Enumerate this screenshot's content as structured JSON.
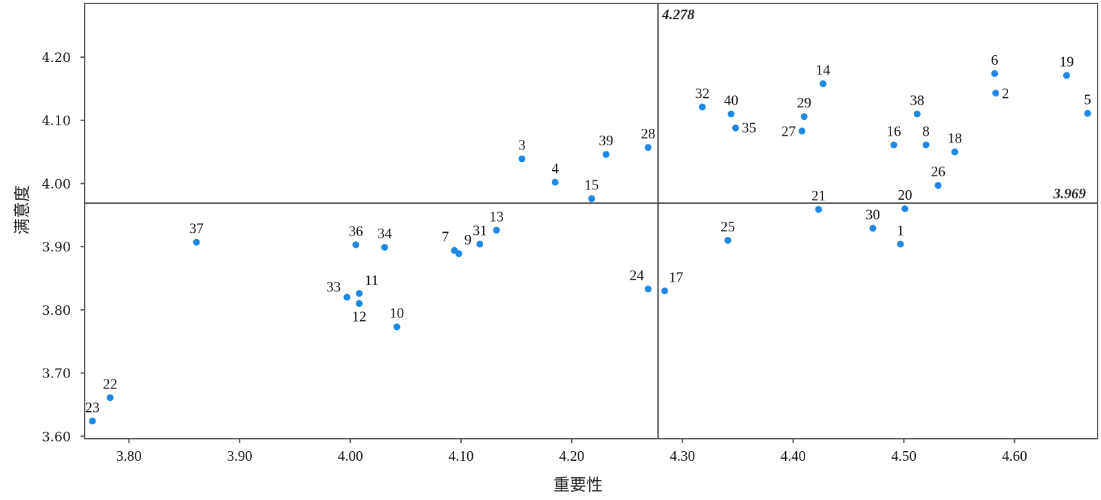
{
  "chart_data": {
    "type": "scatter",
    "title": "",
    "xlabel": "重要性",
    "ylabel": "满意度",
    "xlim": [
      3.76,
      4.675
    ],
    "ylim": [
      3.596,
      4.285
    ],
    "xticks": [
      "3.80",
      "3.90",
      "4.00",
      "4.10",
      "4.20",
      "4.30",
      "4.40",
      "4.50",
      "4.60"
    ],
    "yticks": [
      "3.60",
      "3.70",
      "3.80",
      "3.90",
      "4.00",
      "4.10",
      "4.20"
    ],
    "grid": false,
    "reference_lines": {
      "x": {
        "value": 4.278,
        "label": "4.278"
      },
      "y": {
        "value": 3.969,
        "label": "3.969"
      }
    },
    "point_color": "#1e88e5",
    "points": [
      {
        "label": "1",
        "x": 4.497,
        "y": 3.904
      },
      {
        "label": "2",
        "x": 4.583,
        "y": 4.143
      },
      {
        "label": "3",
        "x": 4.155,
        "y": 4.039
      },
      {
        "label": "4",
        "x": 4.185,
        "y": 4.002
      },
      {
        "label": "5",
        "x": 4.666,
        "y": 4.111
      },
      {
        "label": "6",
        "x": 4.582,
        "y": 4.174
      },
      {
        "label": "7",
        "x": 4.094,
        "y": 3.894
      },
      {
        "label": "8",
        "x": 4.52,
        "y": 4.061
      },
      {
        "label": "9",
        "x": 4.098,
        "y": 3.889
      },
      {
        "label": "10",
        "x": 4.042,
        "y": 3.773
      },
      {
        "label": "11",
        "x": 4.008,
        "y": 3.826
      },
      {
        "label": "12",
        "x": 4.008,
        "y": 3.81
      },
      {
        "label": "13",
        "x": 4.132,
        "y": 3.926
      },
      {
        "label": "14",
        "x": 4.427,
        "y": 4.158
      },
      {
        "label": "15",
        "x": 4.218,
        "y": 3.976
      },
      {
        "label": "16",
        "x": 4.491,
        "y": 4.061
      },
      {
        "label": "17",
        "x": 4.284,
        "y": 3.83
      },
      {
        "label": "18",
        "x": 4.546,
        "y": 4.05
      },
      {
        "label": "19",
        "x": 4.647,
        "y": 4.171
      },
      {
        "label": "20",
        "x": 4.501,
        "y": 3.96
      },
      {
        "label": "21",
        "x": 4.423,
        "y": 3.959
      },
      {
        "label": "22",
        "x": 3.783,
        "y": 3.661
      },
      {
        "label": "23",
        "x": 3.767,
        "y": 3.624
      },
      {
        "label": "24",
        "x": 4.269,
        "y": 3.833
      },
      {
        "label": "25",
        "x": 4.341,
        "y": 3.91
      },
      {
        "label": "26",
        "x": 4.531,
        "y": 3.997
      },
      {
        "label": "27",
        "x": 4.408,
        "y": 4.083
      },
      {
        "label": "28",
        "x": 4.269,
        "y": 4.057
      },
      {
        "label": "29",
        "x": 4.41,
        "y": 4.106
      },
      {
        "label": "30",
        "x": 4.472,
        "y": 3.929
      },
      {
        "label": "31",
        "x": 4.117,
        "y": 3.904
      },
      {
        "label": "32",
        "x": 4.318,
        "y": 4.121
      },
      {
        "label": "33",
        "x": 3.997,
        "y": 3.82
      },
      {
        "label": "34",
        "x": 4.031,
        "y": 3.899
      },
      {
        "label": "35",
        "x": 4.348,
        "y": 4.088
      },
      {
        "label": "36",
        "x": 4.005,
        "y": 3.903
      },
      {
        "label": "37",
        "x": 3.861,
        "y": 3.907
      },
      {
        "label": "38",
        "x": 4.512,
        "y": 4.11
      },
      {
        "label": "39",
        "x": 4.231,
        "y": 4.046
      },
      {
        "label": "40",
        "x": 4.344,
        "y": 4.11
      }
    ]
  }
}
